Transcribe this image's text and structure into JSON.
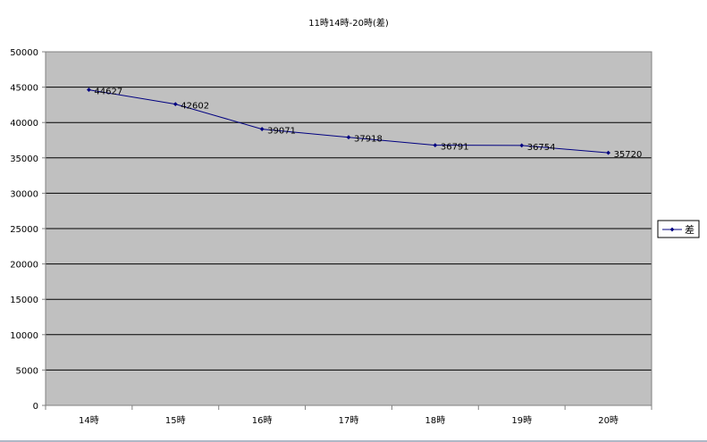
{
  "chart_data": {
    "type": "line",
    "title": "11時14時-20時(差)",
    "xlabel": "",
    "ylabel": "",
    "categories": [
      "14時",
      "15時",
      "16時",
      "17時",
      "18時",
      "19時",
      "20時"
    ],
    "series": [
      {
        "name": "差",
        "values": [
          44627,
          42602,
          39071,
          37918,
          36791,
          36754,
          35720
        ]
      }
    ],
    "ylim": [
      0,
      50000
    ],
    "yticks": [
      0,
      5000,
      10000,
      15000,
      20000,
      25000,
      30000,
      35000,
      40000,
      45000,
      50000
    ],
    "grid": true,
    "legend": "right",
    "data_labels": true,
    "colors": {
      "plot_background": "#c0c0c0",
      "series": "#000080",
      "gridline": "#000000",
      "axis": "#808080",
      "text": "#000000"
    }
  }
}
